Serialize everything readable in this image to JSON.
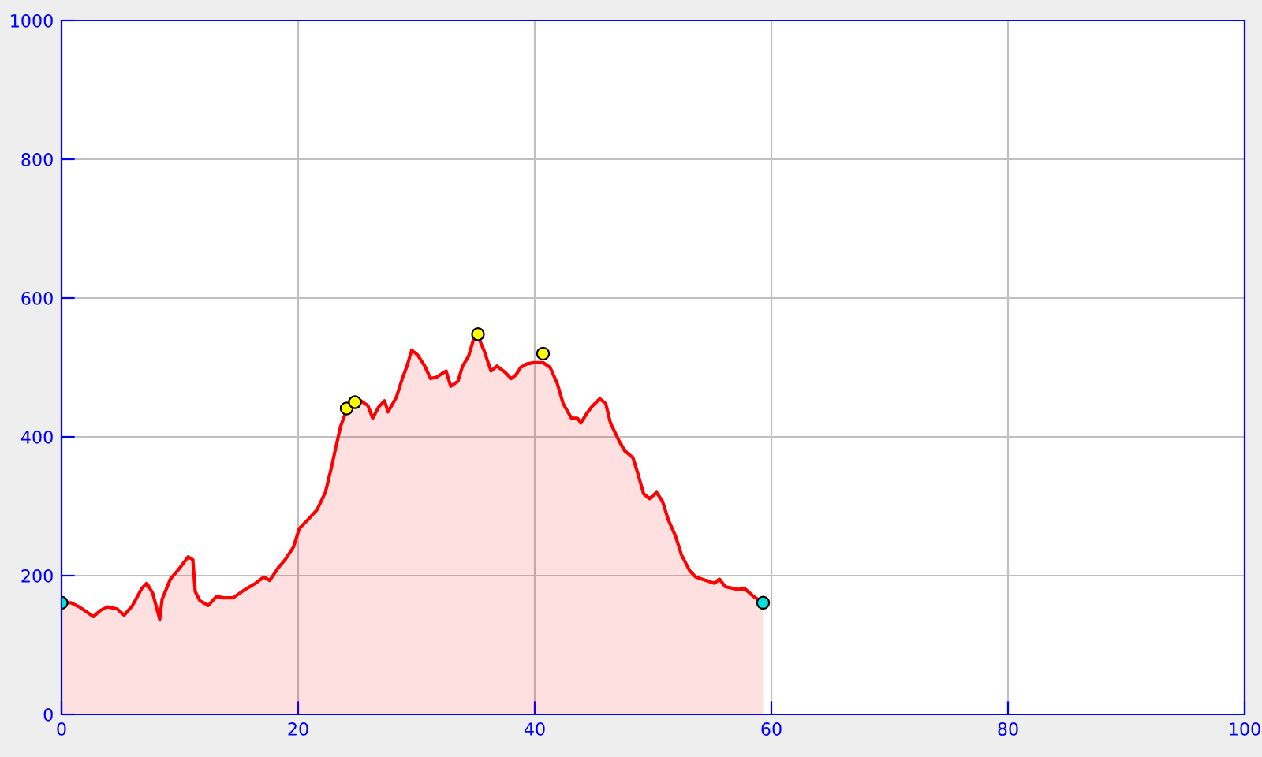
{
  "chart_data": {
    "type": "area",
    "xlim": [
      0,
      100
    ],
    "ylim": [
      0,
      1000
    ],
    "xticks": [
      0,
      20,
      40,
      60,
      80,
      100
    ],
    "yticks": [
      0,
      200,
      400,
      600,
      800,
      1000
    ],
    "grid": true,
    "series": [
      {
        "color": "#ff0000",
        "x": [
          0,
          0.8,
          1.5,
          2.1,
          2.7,
          3.3,
          3.9,
          4.7,
          5.3,
          6,
          6.8,
          7.2,
          7.7,
          8.3,
          8.5,
          9.2,
          9.9,
          10.7,
          11.1,
          11.3,
          11.7,
          12.4,
          13.1,
          13.7,
          14.5,
          15.5,
          16.4,
          17.1,
          17.6,
          18.3,
          18.9,
          19.6,
          20.1,
          20.9,
          21.6,
          22.3,
          22.8,
          23.2,
          23.6,
          24,
          24.4,
          25.3,
          25.9,
          26.3,
          26.8,
          27.3,
          27.6,
          28.3,
          28.8,
          29.2,
          29.6,
          30.1,
          30.7,
          31.2,
          31.7,
          32.5,
          32.9,
          33.5,
          33.9,
          34.4,
          34.8,
          35.2,
          35.7,
          36.3,
          36.8,
          37.5,
          38,
          38.4,
          38.8,
          39.3,
          39.9,
          40.7,
          41.3,
          41.9,
          42.4,
          43.1,
          43.6,
          43.9,
          44.4,
          44.9,
          45.5,
          46,
          46.4,
          47.1,
          47.6,
          48.3,
          48.7,
          49.2,
          49.7,
          50.3,
          50.8,
          51.3,
          51.9,
          52.4,
          53.1,
          53.6,
          54.5,
          55.2,
          55.6,
          56.1,
          57.2,
          57.7,
          58.5,
          59.3
        ],
        "values": [
          161,
          161,
          155,
          148,
          141,
          150,
          155,
          152,
          143,
          157,
          182,
          189,
          175,
          137,
          166,
          195,
          209,
          227,
          223,
          177,
          164,
          157,
          170,
          168,
          168,
          180,
          189,
          198,
          193,
          211,
          223,
          241,
          268,
          282,
          295,
          320,
          355,
          386,
          416,
          434,
          445,
          452,
          445,
          427,
          443,
          452,
          436,
          457,
          484,
          502,
          525,
          518,
          502,
          484,
          486,
          495,
          473,
          480,
          502,
          516,
          539,
          545,
          525,
          495,
          502,
          493,
          484,
          489,
          500,
          505,
          507,
          507,
          500,
          477,
          448,
          427,
          427,
          420,
          434,
          445,
          455,
          448,
          420,
          395,
          380,
          370,
          348,
          318,
          311,
          320,
          307,
          280,
          257,
          230,
          207,
          198,
          193,
          189,
          195,
          184,
          180,
          182,
          170,
          161
        ]
      },
      {
        "type": "scatter",
        "color": "#00e0e0",
        "x": [
          0,
          59.3
        ],
        "values": [
          161,
          161
        ]
      },
      {
        "type": "scatter",
        "color": "#ffff00",
        "x": [
          24.1,
          24.8,
          35.2,
          40.7
        ],
        "values": [
          441,
          450,
          548,
          520
        ]
      }
    ]
  }
}
